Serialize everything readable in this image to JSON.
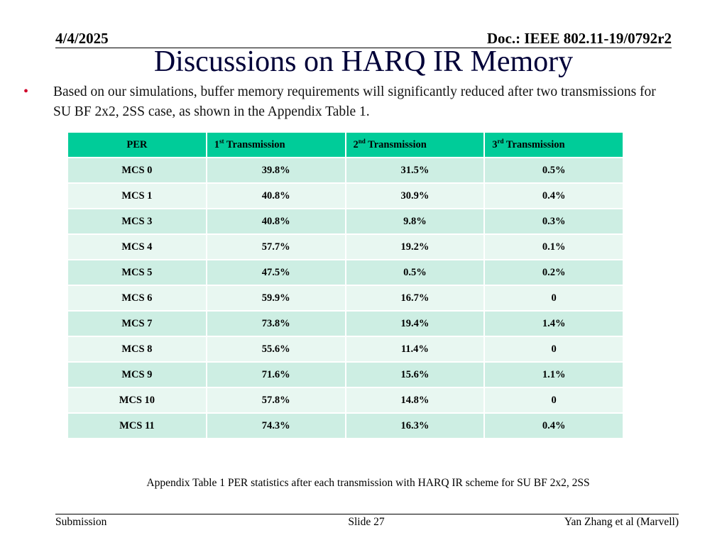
{
  "header": {
    "date": "4/4/2025",
    "doc": "Doc.: IEEE 802.11-19/0792r2"
  },
  "title": "Discussions on HARQ IR Memory",
  "bullet": {
    "text": "Based on our simulations, buffer memory requirements will significantly reduced after two transmissions for SU BF 2x2, 2SS case, as shown in the Appendix Table 1."
  },
  "table": {
    "columns": [
      {
        "base": "PER",
        "sup": "",
        "suffix": ""
      },
      {
        "base": "1",
        "sup": "st",
        "suffix": " Transmission"
      },
      {
        "base": "2",
        "sup": "nd",
        "suffix": " Transmission"
      },
      {
        "base": "3",
        "sup": "rd",
        "suffix": " Transmission"
      }
    ],
    "rows": [
      [
        "MCS 0",
        "39.8%",
        "31.5%",
        "0.5%"
      ],
      [
        "MCS 1",
        "40.8%",
        "30.9%",
        "0.4%"
      ],
      [
        "MCS 3",
        "40.8%",
        "9.8%",
        "0.3%"
      ],
      [
        "MCS 4",
        "57.7%",
        "19.2%",
        "0.1%"
      ],
      [
        "MCS 5",
        "47.5%",
        "0.5%",
        "0.2%"
      ],
      [
        "MCS 6",
        "59.9%",
        "16.7%",
        "0"
      ],
      [
        "MCS 7",
        "73.8%",
        "19.4%",
        "1.4%"
      ],
      [
        "MCS 8",
        "55.6%",
        "11.4%",
        "0"
      ],
      [
        "MCS 9",
        "71.6%",
        "15.6%",
        "1.1%"
      ],
      [
        "MCS 10",
        "57.8%",
        "14.8%",
        "0"
      ],
      [
        "MCS 11",
        "74.3%",
        "16.3%",
        "0.4%"
      ]
    ]
  },
  "caption": "Appendix Table 1  PER statistics after each transmission with HARQ IR scheme for SU BF 2x2, 2SS",
  "footer": {
    "left": "Submission",
    "center": "Slide 27",
    "right": "Yan Zhang et al (Marvell)"
  },
  "colors": {
    "header_fill": "#00cc99",
    "row_odd": "#cdeee3",
    "row_even": "#e8f7f1",
    "title": "#000038",
    "bullet": "#d0002a"
  }
}
